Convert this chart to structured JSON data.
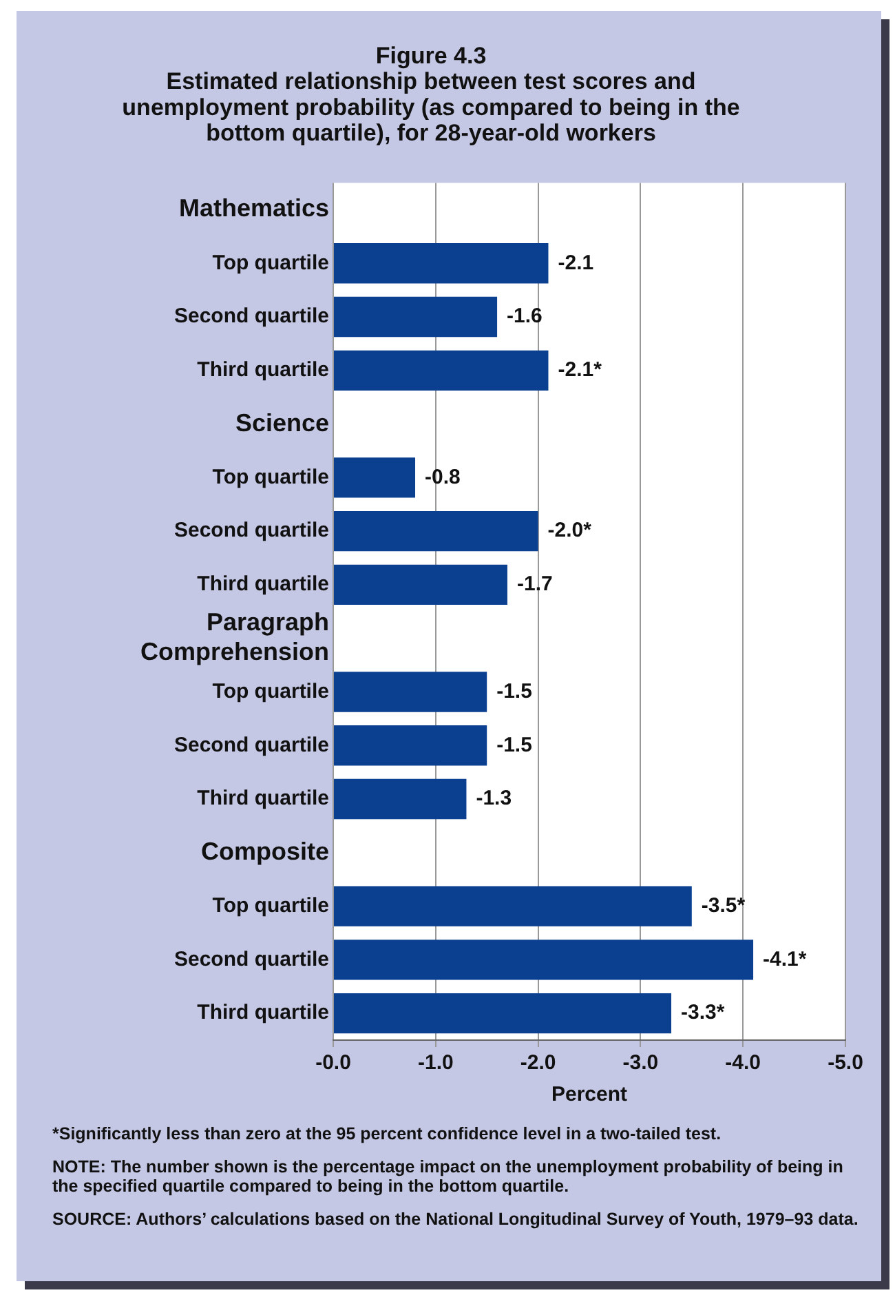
{
  "chart_data": {
    "type": "bar",
    "orientation": "horizontal",
    "title": [
      "Figure 4.3",
      "Estimated relationship between test scores and",
      "unemployment probability (as compared to being in the",
      "bottom quartile), for 28-year-old workers"
    ],
    "xlabel": "Percent",
    "categories": [
      "Mathematics",
      "Top quartile",
      "Second quartile",
      "Third quartile",
      "Science",
      "Top quartile",
      "Second quartile",
      "Third quartile",
      "Paragraph Comprehension",
      "Top quartile",
      "Second quartile",
      "Third quartile",
      "Composite",
      "Top quartile",
      "Second quartile",
      "Third quartile"
    ],
    "values": [
      null,
      -2.1,
      -1.6,
      -2.1,
      null,
      -0.8,
      -2.0,
      -1.7,
      null,
      -1.5,
      -1.5,
      -1.3,
      null,
      -3.5,
      -4.1,
      -3.3
    ],
    "value_labels": [
      null,
      "-2.1",
      "-1.6",
      "-2.1*",
      null,
      "-0.8",
      "-2.0*",
      "-1.7",
      null,
      "-1.5",
      "-1.5",
      "-1.3",
      null,
      "-3.5*",
      "-4.1*",
      "-3.3*"
    ],
    "color": "#0b3f8f",
    "xlim": [
      0,
      -5
    ],
    "xticks": [
      {
        "value": 0,
        "label": "-0.0"
      },
      {
        "value": -1,
        "label": "-1.0"
      },
      {
        "value": -2,
        "label": "-2.0"
      },
      {
        "value": -3,
        "label": "-3.0"
      },
      {
        "value": -4,
        "label": "-4.0"
      },
      {
        "value": -5,
        "label": "-5.0"
      }
    ],
    "grid": "x",
    "annotations": [
      "*Significantly less than zero at the 95 percent confidence level in a two-tailed test.",
      "NOTE: The number shown is the percentage impact on the unemployment probability of being in the specified quartile compared to being in the bottom quartile.",
      "SOURCE: Authors’ calculations based on the National Longitudinal Survey of Youth, 1979–93 data."
    ]
  }
}
